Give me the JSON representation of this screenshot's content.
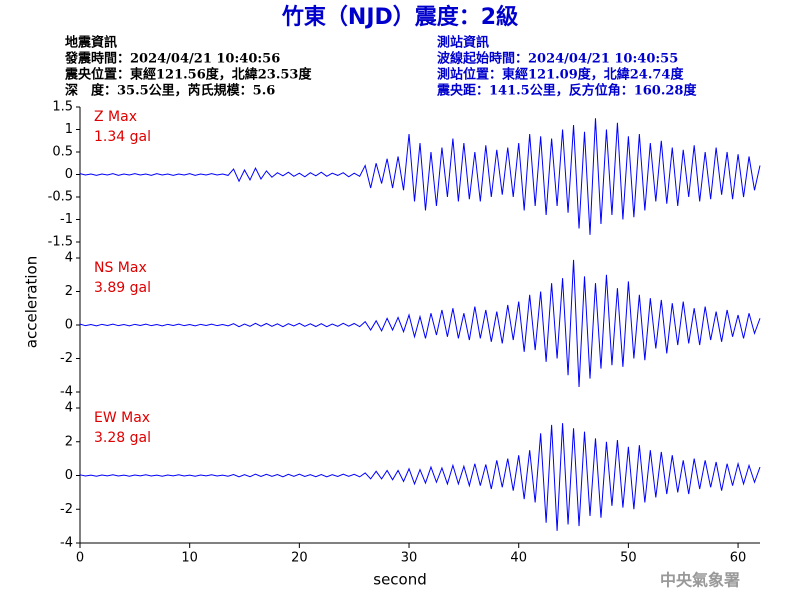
{
  "header": {
    "title": "竹東（NJD）震度：2級",
    "left": [
      "地震資訊",
      "發震時間：2024/04/21 10:40:56",
      "震央位置：東經121.56度，北緯23.53度",
      "深　度：35.5公里，芮氏規模：5.6"
    ],
    "right": [
      "測站資訊",
      "波線起始時間：2024/04/21 10:40:55",
      "測站位置：東經121.09度，北緯24.74度",
      "震央距：141.5公里，反方位角：160.28度"
    ],
    "watermark": "中央氣象署"
  },
  "chart_data": {
    "type": "line",
    "xlabel": "second",
    "ylabel": "acceleration",
    "xlim": [
      0,
      62
    ],
    "xticks": [
      0,
      10,
      20,
      30,
      40,
      50,
      60
    ],
    "x": [
      0,
      0.5,
      1,
      1.5,
      2,
      2.5,
      3,
      3.5,
      4,
      4.5,
      5,
      5.5,
      6,
      6.5,
      7,
      7.5,
      8,
      8.5,
      9,
      9.5,
      10,
      10.5,
      11,
      11.5,
      12,
      12.5,
      13,
      13.5,
      14,
      14.5,
      15,
      15.5,
      16,
      16.5,
      17,
      17.5,
      18,
      18.5,
      19,
      19.5,
      20,
      20.5,
      21,
      21.5,
      22,
      22.5,
      23,
      23.5,
      24,
      24.5,
      25,
      25.5,
      26,
      26.5,
      27,
      27.5,
      28,
      28.5,
      29,
      29.5,
      30,
      30.5,
      31,
      31.5,
      32,
      32.5,
      33,
      33.5,
      34,
      34.5,
      35,
      35.5,
      36,
      36.5,
      37,
      37.5,
      38,
      38.5,
      39,
      39.5,
      40,
      40.5,
      41,
      41.5,
      42,
      42.5,
      43,
      43.5,
      44,
      44.5,
      45,
      45.5,
      46,
      46.5,
      47,
      47.5,
      48,
      48.5,
      49,
      49.5,
      50,
      50.5,
      51,
      51.5,
      52,
      52.5,
      53,
      53.5,
      54,
      54.5,
      55,
      55.5,
      56,
      56.5,
      57,
      57.5,
      58,
      58.5,
      59,
      59.5,
      60,
      60.5,
      61,
      61.5,
      62
    ],
    "series": [
      {
        "name": "Z Max",
        "max_label": "1.34 gal",
        "color": "#0000ff",
        "ylim": [
          -1.5,
          1.5
        ],
        "yticks": [
          -1.5,
          -1,
          -0.5,
          0,
          0.5,
          1,
          1.5
        ],
        "values": [
          0.02,
          -0.01,
          0.01,
          -0.02,
          0.01,
          -0.01,
          0.02,
          -0.02,
          0.01,
          -0.01,
          0.02,
          -0.01,
          0.01,
          -0.02,
          0.02,
          -0.01,
          0.01,
          -0.02,
          0.01,
          -0.01,
          0.02,
          -0.02,
          0.01,
          -0.01,
          0.02,
          -0.01,
          0.01,
          -0.02,
          0.12,
          -0.15,
          0.1,
          -0.12,
          0.14,
          -0.1,
          0.08,
          -0.06,
          0.04,
          -0.03,
          0.05,
          -0.04,
          0.03,
          -0.05,
          0.04,
          -0.03,
          0.05,
          -0.04,
          0.03,
          -0.02,
          0.04,
          -0.05,
          0.03,
          -0.04,
          0.2,
          -0.3,
          0.25,
          -0.2,
          0.35,
          -0.3,
          0.4,
          -0.35,
          0.9,
          -0.6,
          0.7,
          -0.8,
          0.5,
          -0.7,
          0.6,
          -0.5,
          0.8,
          -0.6,
          0.7,
          -0.55,
          0.5,
          -0.6,
          0.65,
          -0.5,
          0.55,
          -0.45,
          0.6,
          -0.5,
          0.7,
          -0.8,
          0.9,
          -0.7,
          0.85,
          -0.9,
          0.8,
          -0.7,
          1.0,
          -0.85,
          1.1,
          -1.2,
          0.95,
          -1.34,
          1.25,
          -1.1,
          1.0,
          -0.9,
          1.15,
          -1.0,
          0.85,
          -0.95,
          0.9,
          -0.8,
          0.7,
          -0.6,
          0.75,
          -0.65,
          0.6,
          -0.7,
          0.55,
          -0.5,
          0.65,
          -0.6,
          0.5,
          -0.55,
          0.6,
          -0.45,
          0.5,
          -0.55,
          0.45,
          -0.5,
          0.4,
          -0.35,
          0.2
        ]
      },
      {
        "name": "NS Max",
        "max_label": "3.89 gal",
        "color": "#0000ff",
        "ylim": [
          -4,
          4
        ],
        "yticks": [
          -4,
          -2,
          0,
          2,
          4
        ],
        "values": [
          0.05,
          -0.04,
          0.03,
          -0.05,
          0.04,
          -0.03,
          0.05,
          -0.04,
          0.03,
          -0.05,
          0.04,
          -0.03,
          0.05,
          -0.04,
          0.03,
          -0.05,
          0.04,
          -0.03,
          0.05,
          -0.04,
          0.03,
          -0.05,
          0.04,
          -0.03,
          0.05,
          -0.04,
          0.03,
          -0.05,
          0.08,
          -0.1,
          0.06,
          -0.08,
          0.1,
          -0.07,
          0.09,
          -0.08,
          0.07,
          -0.1,
          0.08,
          -0.06,
          0.1,
          -0.08,
          0.07,
          -0.09,
          0.08,
          -0.1,
          0.06,
          -0.08,
          0.1,
          -0.07,
          0.09,
          -0.1,
          0.2,
          -0.3,
          0.25,
          -0.35,
          0.4,
          -0.3,
          0.45,
          -0.4,
          0.6,
          -0.7,
          0.5,
          -0.8,
          0.7,
          -0.6,
          0.9,
          -0.7,
          1.0,
          -0.8,
          0.7,
          -0.9,
          1.1,
          -0.8,
          0.9,
          -1.0,
          0.8,
          -1.1,
          1.2,
          -0.9,
          1.4,
          -1.6,
          1.8,
          -1.5,
          2.0,
          -2.2,
          2.5,
          -2.0,
          2.8,
          -3.0,
          3.89,
          -3.7,
          2.9,
          -3.2,
          2.5,
          -2.6,
          3.0,
          -2.4,
          2.2,
          -2.5,
          2.6,
          -2.0,
          1.8,
          -2.1,
          1.6,
          -1.4,
          1.5,
          -1.7,
          1.3,
          -1.2,
          1.4,
          -1.1,
          1.0,
          -1.2,
          1.1,
          -0.9,
          0.8,
          -1.0,
          0.9,
          -0.7,
          0.6,
          -0.8,
          0.7,
          -0.5,
          0.4
        ]
      },
      {
        "name": "EW Max",
        "max_label": "3.28 gal",
        "color": "#0000ff",
        "ylim": [
          -4,
          4
        ],
        "yticks": [
          -4,
          -2,
          0,
          2,
          4
        ],
        "values": [
          0.04,
          -0.03,
          0.02,
          -0.04,
          0.03,
          -0.02,
          0.04,
          -0.03,
          0.02,
          -0.04,
          0.03,
          -0.02,
          0.04,
          -0.03,
          0.02,
          -0.04,
          0.03,
          -0.02,
          0.04,
          -0.03,
          0.02,
          -0.04,
          0.03,
          -0.02,
          0.04,
          -0.03,
          0.02,
          -0.04,
          0.06,
          -0.08,
          0.05,
          -0.07,
          0.08,
          -0.06,
          0.07,
          -0.05,
          0.06,
          -0.08,
          0.07,
          -0.05,
          0.08,
          -0.06,
          0.05,
          -0.07,
          0.06,
          -0.08,
          0.05,
          -0.06,
          0.08,
          -0.05,
          0.07,
          -0.08,
          0.15,
          -0.2,
          0.25,
          -0.2,
          0.3,
          -0.25,
          0.3,
          -0.35,
          0.4,
          -0.5,
          0.35,
          -0.45,
          0.5,
          -0.4,
          0.45,
          -0.5,
          0.6,
          -0.5,
          0.55,
          -0.6,
          0.7,
          -0.6,
          0.65,
          -0.8,
          0.9,
          -0.7,
          1.0,
          -0.9,
          1.2,
          -1.4,
          1.5,
          -1.6,
          2.5,
          -2.8,
          3.0,
          -3.28,
          3.1,
          -2.9,
          2.8,
          -3.0,
          2.6,
          -2.4,
          2.2,
          -2.5,
          2.0,
          -1.8,
          2.1,
          -1.9,
          1.7,
          -2.0,
          1.8,
          -1.6,
          1.5,
          -1.3,
          1.4,
          -1.1,
          1.2,
          -1.0,
          0.9,
          -1.1,
          1.0,
          -0.8,
          0.9,
          -0.7,
          0.8,
          -0.9,
          0.7,
          -0.6,
          0.7,
          -0.5,
          0.6,
          -0.4,
          0.5
        ]
      }
    ]
  }
}
